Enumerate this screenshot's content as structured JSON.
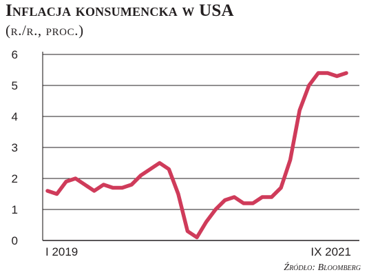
{
  "title": "Inflacja konsumencka w USA",
  "subtitle": "(r./r., proc.)",
  "source": "Źródło: Bloomberg",
  "colors": {
    "line": "#cf3b5a",
    "grid": "#231f20",
    "text": "#231f20"
  },
  "chart_data": {
    "type": "line",
    "x": [
      "2019-01",
      "2019-02",
      "2019-03",
      "2019-04",
      "2019-05",
      "2019-06",
      "2019-07",
      "2019-08",
      "2019-09",
      "2019-10",
      "2019-11",
      "2019-12",
      "2020-01",
      "2020-02",
      "2020-03",
      "2020-04",
      "2020-05",
      "2020-06",
      "2020-07",
      "2020-08",
      "2020-09",
      "2020-10",
      "2020-11",
      "2020-12",
      "2021-01",
      "2021-02",
      "2021-03",
      "2021-04",
      "2021-05",
      "2021-06",
      "2021-07",
      "2021-08",
      "2021-09"
    ],
    "series": [
      {
        "values": [
          1.6,
          1.5,
          1.9,
          2.0,
          1.8,
          1.6,
          1.8,
          1.7,
          1.7,
          1.8,
          2.1,
          2.3,
          2.5,
          2.3,
          1.5,
          0.3,
          0.1,
          0.6,
          1.0,
          1.3,
          1.4,
          1.2,
          1.2,
          1.4,
          1.4,
          1.7,
          2.6,
          4.2,
          5.0,
          5.4,
          5.4,
          5.3,
          5.4
        ]
      }
    ],
    "x_tick_labels": [
      {
        "index": 0,
        "label": "I 2019"
      },
      {
        "index": 32,
        "label": "IX 2021"
      }
    ],
    "y_ticks": [
      0,
      1,
      2,
      3,
      4,
      5,
      6
    ],
    "ylim": [
      0,
      6
    ],
    "xlabel": "",
    "ylabel": "",
    "grid": true,
    "legend": false
  }
}
